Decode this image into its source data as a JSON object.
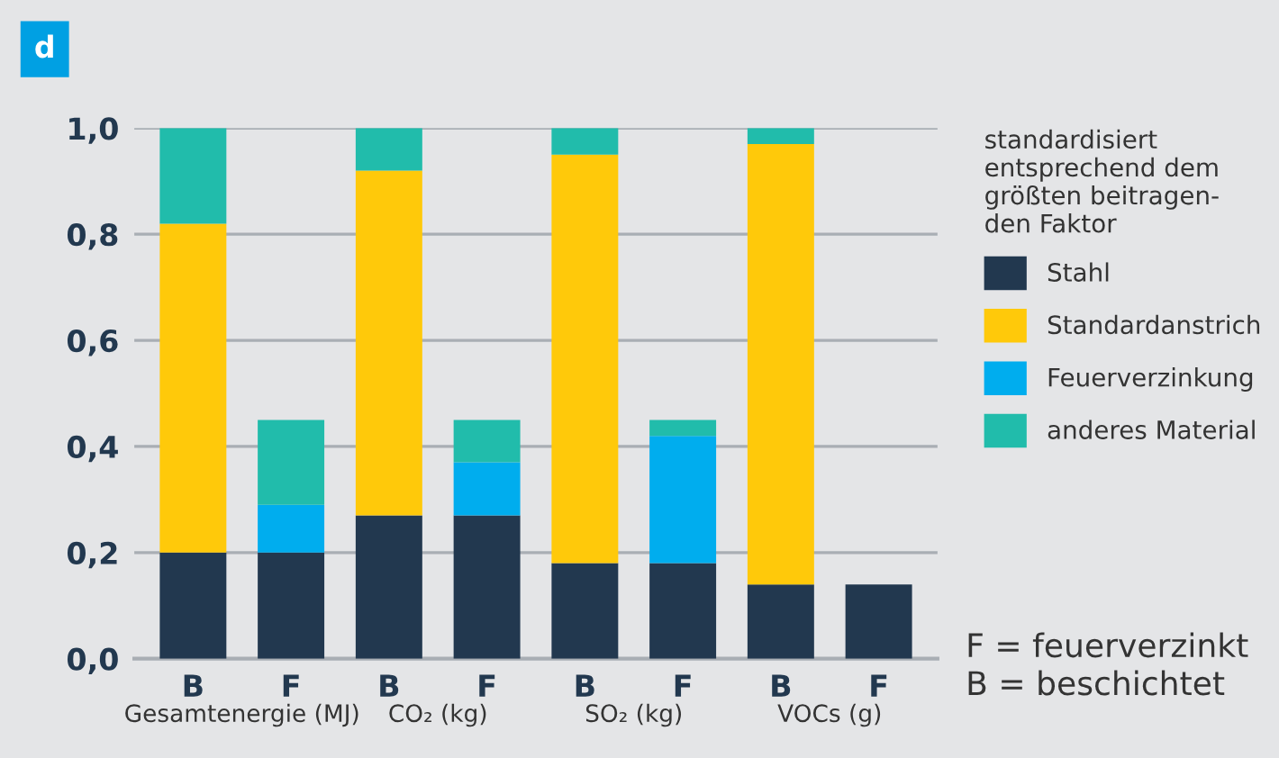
{
  "chart_data": {
    "type": "bar",
    "title": "d",
    "stacked": true,
    "categories": [
      "B",
      "F",
      "B",
      "F",
      "B",
      "F",
      "B",
      "F"
    ],
    "series": [
      {
        "name": "Stahl",
        "color": "#22384f",
        "values": [
          0.2,
          0.2,
          0.27,
          0.27,
          0.18,
          0.18,
          0.14,
          0.14
        ]
      },
      {
        "name": "Standardanstrich",
        "color": "#ffc90a",
        "values": [
          0.62,
          0,
          0.65,
          0,
          0.77,
          0,
          0.83,
          0
        ]
      },
      {
        "name": "Feuerverzinkung",
        "color": "#00adee",
        "values": [
          0,
          0.09,
          0,
          0.1,
          0,
          0.24,
          0,
          0
        ]
      },
      {
        "name": "anderes Material",
        "color": "#21bcab",
        "values": [
          0.18,
          0.16,
          0.08,
          0.08,
          0.05,
          0.03,
          0.03,
          0
        ]
      }
    ],
    "ylim": [
      0,
      1.0
    ],
    "yticks": [
      {
        "value": 0,
        "label": "0,0"
      },
      {
        "value": 0.2,
        "label": "0,2"
      },
      {
        "value": 0.4,
        "label": "0,4"
      },
      {
        "value": 0.6,
        "label": "0,6"
      },
      {
        "value": 0.8,
        "label": "0,8"
      },
      {
        "value": 1.0,
        "label": "1,0"
      }
    ],
    "grid": "y",
    "legend": "right",
    "legend_title": "standardisiert\nentsprechend dem\ngrößten beitragen-\nden Faktor",
    "annotations": [
      "Gesamtenergie (MJ)",
      "CO₂ (kg)",
      "SO₂ (kg)",
      "VOCs (g)",
      "F = feuerverzinkt",
      "B = beschichtet"
    ]
  }
}
